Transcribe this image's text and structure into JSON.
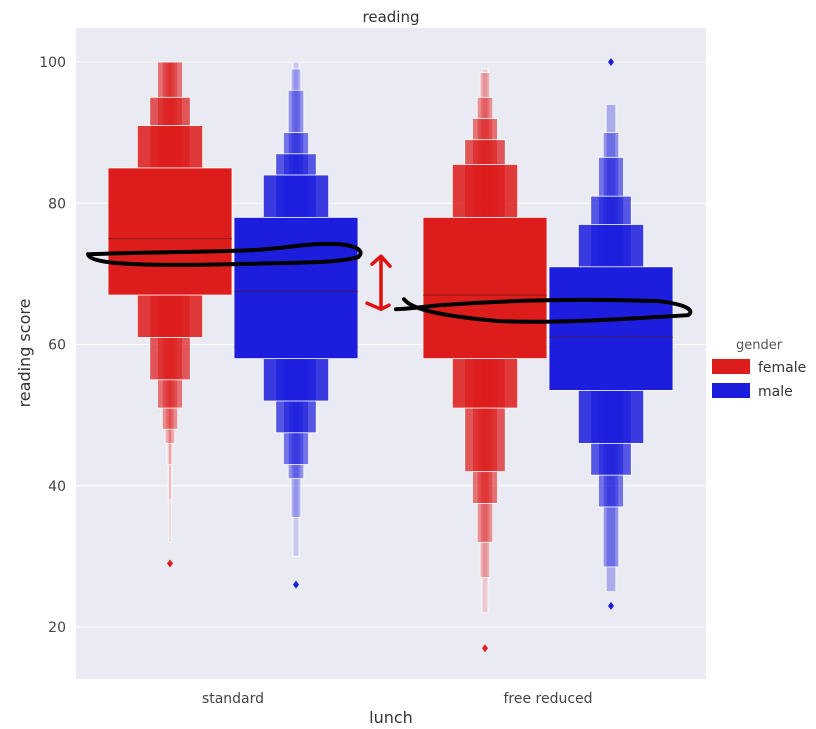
{
  "chart_data": {
    "type": "boxen",
    "title": "reading",
    "xlabel": "lunch",
    "ylabel": "reading score",
    "categories": [
      "standard",
      "free reduced"
    ],
    "yticks": [
      20,
      40,
      60,
      80,
      100
    ],
    "ylim": [
      13,
      105
    ],
    "grid": true,
    "legend": {
      "title": "gender",
      "placement": "right",
      "entries": [
        {
          "label": "female",
          "color": "#dd1c1c"
        },
        {
          "label": "male",
          "color": "#1c1ddd"
        }
      ]
    },
    "series": [
      {
        "name": "female",
        "color": "#dd1c1c",
        "groups": [
          {
            "category": "standard",
            "median": 75,
            "levels": [
              [
                67,
                85
              ],
              [
                61,
                91
              ],
              [
                55,
                95
              ],
              [
                51,
                100
              ],
              [
                48,
                100
              ],
              [
                46,
                100
              ],
              [
                43,
                100
              ],
              [
                38,
                100
              ],
              [
                32,
                100
              ]
            ],
            "outliers": [
              29
            ]
          },
          {
            "category": "free reduced",
            "median": 67,
            "levels": [
              [
                58,
                78
              ],
              [
                51,
                85.5
              ],
              [
                42,
                89
              ],
              [
                37.5,
                92
              ],
              [
                32,
                95
              ],
              [
                27,
                98.5
              ],
              [
                22,
                99
              ]
            ],
            "outliers": [
              17
            ]
          }
        ]
      },
      {
        "name": "male",
        "color": "#1c1ddd",
        "groups": [
          {
            "category": "standard",
            "median": 67.5,
            "levels": [
              [
                58,
                78
              ],
              [
                52,
                84
              ],
              [
                47.5,
                87
              ],
              [
                43,
                90
              ],
              [
                41,
                96
              ],
              [
                35.5,
                99
              ],
              [
                30,
                100
              ]
            ],
            "outliers": [
              26
            ]
          },
          {
            "category": "free reduced",
            "median": 61,
            "levels": [
              [
                53.5,
                71
              ],
              [
                46,
                77
              ],
              [
                41.5,
                81
              ],
              [
                37,
                86.5
              ],
              [
                28.5,
                90
              ],
              [
                25,
                94
              ]
            ],
            "outliers": [
              23,
              100
            ]
          }
        ]
      }
    ],
    "annotations": {
      "mean_line_1": {
        "x_from": "standard",
        "y": 72.5
      },
      "mean_line_2": {
        "x_from": "free reduced",
        "y": 65
      },
      "arrow_range": [
        65,
        72.5
      ],
      "color": "#000000",
      "arrow_color": "#e01010"
    }
  }
}
